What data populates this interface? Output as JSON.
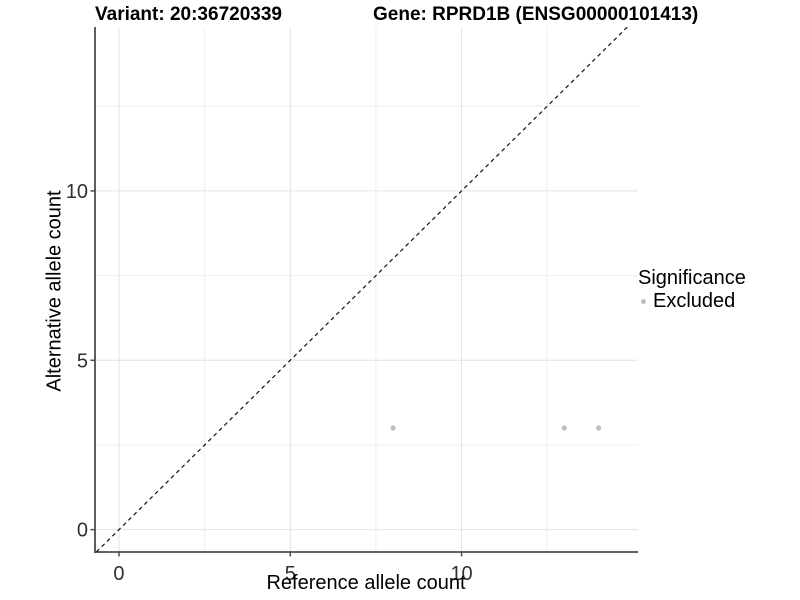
{
  "chart_data": {
    "type": "scatter",
    "titles": {
      "variant": "Variant: 20:36720339",
      "gene": "Gene: RPRD1B (ENSG00000101413)"
    },
    "xlabel": "Reference allele count",
    "ylabel": "Alternative allele count",
    "xlim": [
      -0.7,
      15.15
    ],
    "ylim": [
      -0.66,
      14.84
    ],
    "x_major_ticks": [
      0,
      5,
      10
    ],
    "y_major_ticks": [
      0,
      5,
      10
    ],
    "x_minor_gridlines": [
      2.5,
      7.5,
      12.5
    ],
    "y_minor_gridlines": [
      2.5,
      7.5,
      12.5
    ],
    "grid": true,
    "legend_position": "right",
    "identity_line": {
      "style": "dashed",
      "from": -0.66,
      "to": 14.84,
      "color": "#111111"
    },
    "series": [
      {
        "name": "Excluded",
        "color": "#bebebe",
        "points": [
          {
            "x": 8,
            "y": 3
          },
          {
            "x": 13,
            "y": 3
          },
          {
            "x": 14,
            "y": 3
          }
        ]
      }
    ],
    "legend": {
      "title": "Significance",
      "items": [
        {
          "label": "Excluded",
          "color": "#bebebe"
        }
      ]
    }
  },
  "colors": {
    "grid_major": "#e3e3e3",
    "grid_minor": "#efefef",
    "axis_line": "#4d4d4d",
    "tick_text": "#303030"
  }
}
